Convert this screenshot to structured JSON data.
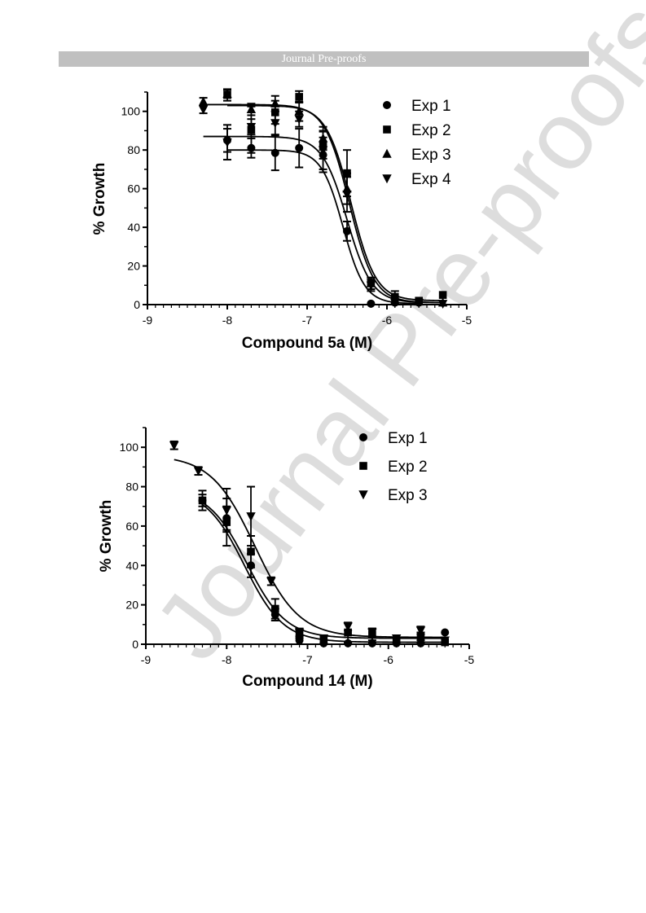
{
  "header": {
    "text": "Journal Pre-proofs",
    "background": "#c0c0c0"
  },
  "watermark": {
    "text": "Journal Pre-proofs",
    "color": "#dddddd"
  },
  "chart_data": [
    {
      "type": "scatter",
      "subtype": "dose-response with fitted sigmoid curves and error bars",
      "title": "",
      "xlabel": "Compound 5a (M)",
      "ylabel": "% Growth",
      "xlim": [
        -9,
        -5
      ],
      "ylim": [
        0,
        110
      ],
      "xticks": [
        -9,
        -8,
        -7,
        -6,
        -5
      ],
      "yticks": [
        0,
        20,
        40,
        60,
        80,
        100
      ],
      "xtick_labels": [
        "-9",
        "-8",
        "-7",
        "-6",
        "-5"
      ],
      "ytick_labels": [
        "0",
        "20",
        "40",
        "60",
        "80",
        "100"
      ],
      "grid": false,
      "legend_position": "top-right",
      "series": [
        {
          "name": "Exp 1",
          "marker": "circle",
          "points": [
            [
              -8.0,
              85,
              6
            ],
            [
              -7.7,
              81,
              5
            ],
            [
              -7.4,
              78.5,
              9
            ],
            [
              -7.1,
              81,
              10
            ],
            [
              -6.8,
              77.5,
              9
            ],
            [
              -6.5,
              38,
              5
            ],
            [
              -6.2,
              0.5,
              1
            ],
            [
              -5.9,
              1,
              1
            ],
            [
              -5.6,
              1,
              1
            ]
          ],
          "fit": {
            "top": 80,
            "bottom": 0.5,
            "log_ec50": -6.55,
            "hill": 3.2
          }
        },
        {
          "name": "Exp 2",
          "marker": "square",
          "points": [
            [
              -8.0,
              108.5,
              3
            ],
            [
              -7.7,
              90.5,
              12
            ],
            [
              -7.4,
              99.5,
              6
            ],
            [
              -7.1,
              107.5,
              3
            ],
            [
              -6.8,
              82.5,
              7
            ],
            [
              -6.5,
              68,
              12
            ],
            [
              -6.2,
              11,
              3
            ],
            [
              -5.9,
              4,
              3
            ],
            [
              -5.6,
              2,
              1
            ],
            [
              -5.3,
              5,
              1
            ]
          ],
          "fit": {
            "top": 103,
            "bottom": 2,
            "log_ec50": -6.45,
            "hill": 2.8
          }
        },
        {
          "name": "Exp 3",
          "marker": "triangle-up",
          "points": [
            [
              -8.3,
              105,
              2
            ],
            [
              -8.0,
              109,
              2
            ],
            [
              -7.7,
              101,
              3
            ],
            [
              -7.4,
              104,
              4
            ],
            [
              -7.1,
              100,
              5
            ],
            [
              -6.8,
              86,
              6
            ],
            [
              -6.5,
              60,
              8
            ],
            [
              -6.2,
              11,
              3
            ],
            [
              -5.9,
              2,
              2
            ],
            [
              -5.6,
              1.5,
              1
            ],
            [
              -5.3,
              1,
              1
            ]
          ],
          "fit": {
            "top": 103.5,
            "bottom": 1,
            "log_ec50": -6.47,
            "hill": 2.8
          }
        },
        {
          "name": "Exp 4",
          "marker": "triangle-down",
          "points": [
            [
              -8.3,
              101,
              2
            ],
            [
              -8.0,
              84,
              9
            ],
            [
              -7.7,
              92,
              4
            ],
            [
              -7.4,
              94,
              6
            ],
            [
              -7.1,
              96,
              4
            ],
            [
              -6.8,
              80,
              10
            ],
            [
              -6.5,
              57,
              9
            ],
            [
              -6.2,
              10,
              3
            ],
            [
              -5.9,
              1,
              1
            ],
            [
              -5.6,
              1,
              1
            ],
            [
              -5.3,
              0.5,
              1
            ]
          ],
          "fit": {
            "top": 87,
            "bottom": 1,
            "log_ec50": -6.5,
            "hill": 2.8
          }
        }
      ]
    },
    {
      "type": "scatter",
      "subtype": "dose-response with fitted sigmoid curves and error bars",
      "title": "",
      "xlabel": "Compound 14 (M)",
      "ylabel": "% Growth",
      "xlim": [
        -9,
        -5
      ],
      "ylim": [
        0,
        110
      ],
      "xticks": [
        -9,
        -8,
        -7,
        -6,
        -5
      ],
      "yticks": [
        0,
        20,
        40,
        60,
        80,
        100
      ],
      "xtick_labels": [
        "-9",
        "-8",
        "-7",
        "-6",
        "-5"
      ],
      "ytick_labels": [
        "0",
        "20",
        "40",
        "60",
        "80",
        "100"
      ],
      "grid": false,
      "legend_position": "top-right",
      "series": [
        {
          "name": "Exp 1",
          "marker": "circle",
          "points": [
            [
              -8.3,
              73,
              3
            ],
            [
              -8.0,
              64,
              6
            ],
            [
              -7.7,
              40,
              6
            ],
            [
              -7.4,
              15,
              3
            ],
            [
              -7.1,
              2,
              1
            ],
            [
              -6.8,
              0.5,
              1
            ],
            [
              -6.5,
              0.5,
              1
            ],
            [
              -6.2,
              0.5,
              1
            ],
            [
              -5.9,
              0.5,
              1
            ],
            [
              -5.6,
              0.5,
              1
            ],
            [
              -5.3,
              6,
              1
            ]
          ],
          "fit": {
            "top": 79,
            "bottom": 1,
            "log_ec50": -7.78,
            "hill": 1.8
          }
        },
        {
          "name": "Exp 2",
          "marker": "square",
          "points": [
            [
              -8.3,
              73,
              5
            ],
            [
              -8.0,
              62,
              12
            ],
            [
              -7.7,
              47,
              8
            ],
            [
              -7.4,
              18,
              5
            ],
            [
              -7.1,
              5,
              2
            ],
            [
              -6.8,
              3,
              1
            ],
            [
              -6.5,
              6,
              5
            ],
            [
              -6.2,
              5,
              3
            ],
            [
              -5.9,
              2,
              1
            ],
            [
              -5.6,
              4,
              2
            ],
            [
              -5.3,
              1,
              1
            ]
          ],
          "fit": {
            "top": 79,
            "bottom": 3,
            "log_ec50": -7.75,
            "hill": 1.8
          }
        },
        {
          "name": "Exp 3",
          "marker": "triangle-down",
          "points": [
            [
              -8.65,
              101,
              2
            ],
            [
              -8.35,
              88,
              2
            ],
            [
              -8.0,
              68,
              11
            ],
            [
              -7.7,
              65,
              15
            ],
            [
              -7.45,
              32,
              2
            ],
            [
              -7.1,
              6,
              2
            ],
            [
              -6.8,
              3,
              1
            ],
            [
              -6.5,
              9,
              2
            ],
            [
              -6.2,
              6,
              2
            ],
            [
              -5.9,
              3,
              1
            ],
            [
              -5.6,
              7,
              2
            ],
            [
              -5.3,
              2,
              1
            ]
          ],
          "fit": {
            "top": 96,
            "bottom": 3.5,
            "log_ec50": -7.65,
            "hill": 1.6
          }
        }
      ]
    }
  ]
}
